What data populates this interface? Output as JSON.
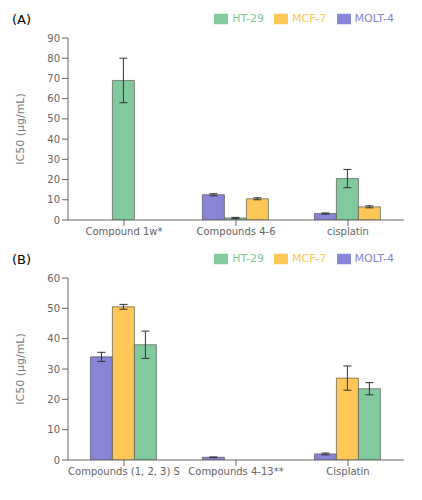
{
  "chart_data": [
    {
      "type": "bar",
      "title": "(A)",
      "y_label": "IC50 (μg/mL)",
      "ylim": [
        0,
        90
      ],
      "yticks": [
        0,
        10,
        20,
        30,
        40,
        50,
        60,
        70,
        80,
        90
      ],
      "grid": false,
      "legend": "upper right",
      "categories": [
        "Compound 1w*",
        "Compounds 4-6",
        "cisplatin"
      ],
      "series": [
        {
          "name": "MOLT-4",
          "color": "#8884d8",
          "values": [
            0,
            12.5,
            3.2
          ],
          "errors": [
            0,
            0.5,
            0.3
          ]
        },
        {
          "name": "HT-29",
          "color": "#82ca9d",
          "values": [
            69,
            1.0,
            20.5
          ],
          "errors": [
            11,
            0.3,
            4.5
          ]
        },
        {
          "name": "MCF-7",
          "color": "#ffc658",
          "values": [
            0,
            10.5,
            6.5
          ],
          "errors": [
            0,
            0.5,
            0.5
          ]
        }
      ]
    },
    {
      "type": "bar",
      "title": "(B)",
      "y_label": "IC50 (μg/mL)",
      "ylim": [
        0,
        60
      ],
      "yticks": [
        0,
        10,
        20,
        30,
        40,
        50,
        60
      ],
      "grid": false,
      "legend": "upper right",
      "categories": [
        "Compounds (1, 2, 3) S",
        "Compounds 4-13**",
        "Cisplatin"
      ],
      "series": [
        {
          "name": "MOLT-4",
          "color": "#8884d8",
          "values": [
            34,
            0.9,
            2.0
          ],
          "errors": [
            1.5,
            0.1,
            0.3
          ]
        },
        {
          "name": "MCF-7",
          "color": "#ffc658",
          "values": [
            50.5,
            0,
            27.0
          ],
          "errors": [
            0.8,
            0,
            4.0
          ]
        },
        {
          "name": "HT-29",
          "color": "#82ca9d",
          "values": [
            38,
            0,
            23.5
          ],
          "errors": [
            4.5,
            0,
            2.0
          ]
        }
      ]
    }
  ]
}
